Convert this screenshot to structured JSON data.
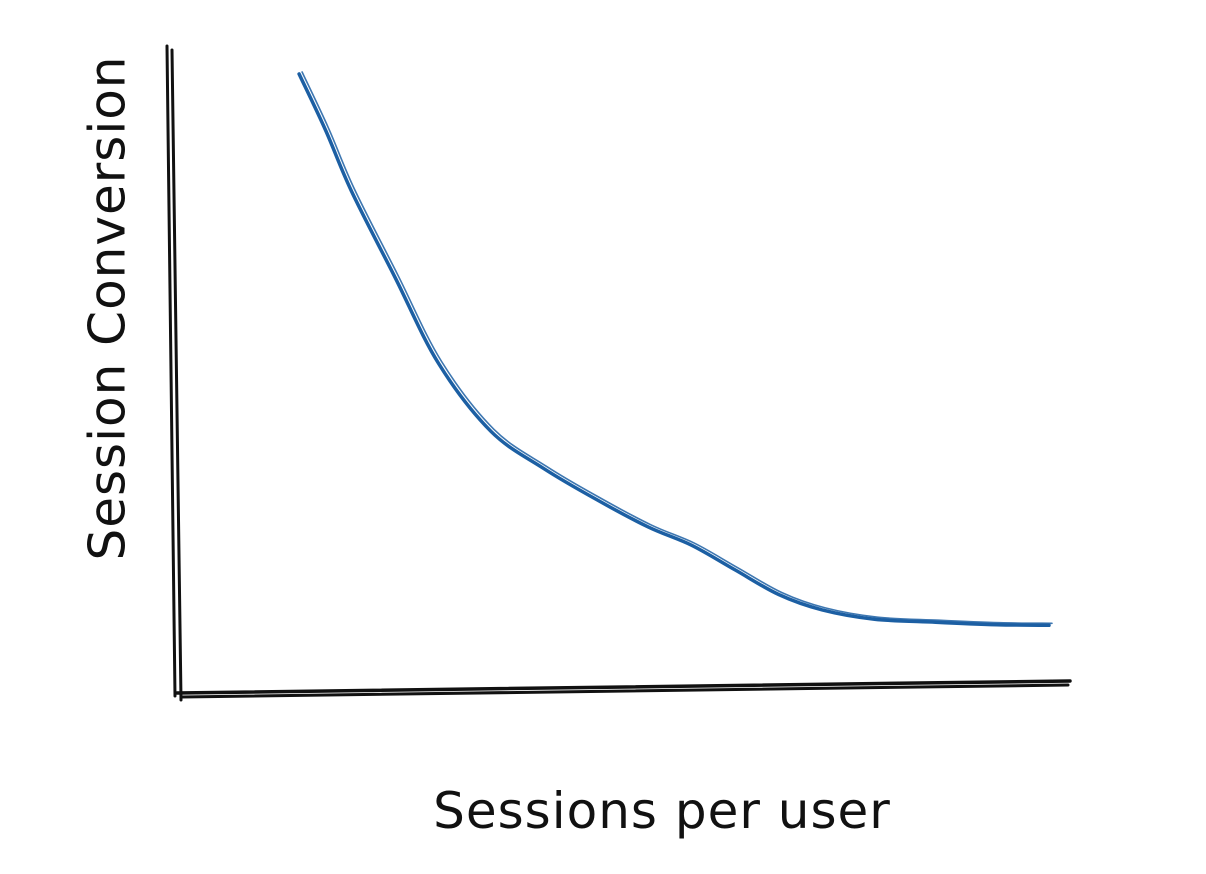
{
  "chart_data": {
    "type": "line",
    "title": "",
    "xlabel": "Sessions per user",
    "ylabel": "Session Conversion",
    "xlim": [
      0,
      100
    ],
    "ylim": [
      0,
      100
    ],
    "grid": false,
    "legend": "none",
    "tick_labels": false,
    "series": [
      {
        "color": "#1c5fa3",
        "x": [
          14,
          17,
          20,
          25,
          30,
          36,
          42,
          48,
          54,
          59,
          64,
          69,
          74,
          80,
          87,
          94,
          100
        ],
        "y": [
          100,
          91,
          81,
          67,
          53,
          42,
          36,
          31,
          26.5,
          23.5,
          19.5,
          15.5,
          13,
          11.5,
          11,
          10.6,
          10.5
        ]
      }
    ]
  }
}
